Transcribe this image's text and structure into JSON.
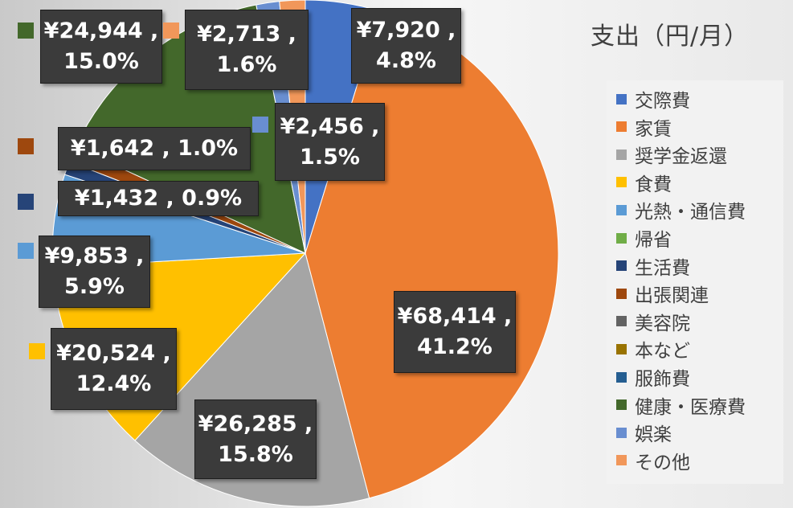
{
  "chart_data": {
    "type": "pie",
    "title": "支出（円/月）",
    "legend_position": "right",
    "series": [
      {
        "name": "交際費",
        "value": 7920,
        "value_label": "¥7,920 ,",
        "percent_label": "4.8%",
        "color": "#4472c4"
      },
      {
        "name": "家賃",
        "value": 68414,
        "value_label": "¥68,414 ,",
        "percent_label": "41.2%",
        "color": "#ed7d31"
      },
      {
        "name": "奨学金返還",
        "value": 26285,
        "value_label": "¥26,285 ,",
        "percent_label": "15.8%",
        "color": "#a5a5a5"
      },
      {
        "name": "食費",
        "value": 20524,
        "value_label": "¥20,524 ,",
        "percent_label": "12.4%",
        "color": "#ffc000"
      },
      {
        "name": "光熱・通信費",
        "value": 9853,
        "value_label": "¥9,853 ,",
        "percent_label": "5.9%",
        "color": "#5b9bd5"
      },
      {
        "name": "帰省",
        "value": 0,
        "value_label": "",
        "percent_label": "",
        "color": "#70ad47"
      },
      {
        "name": "生活費",
        "value": 1432,
        "value_label": "¥1,432 , 0.9%",
        "percent_label": "",
        "color": "#264478"
      },
      {
        "name": "出張関連",
        "value": 1642,
        "value_label": "¥1,642 , 1.0%",
        "percent_label": "",
        "color": "#9e480e"
      },
      {
        "name": "美容院",
        "value": 0,
        "value_label": "",
        "percent_label": "",
        "color": "#636363"
      },
      {
        "name": "本など",
        "value": 0,
        "value_label": "",
        "percent_label": "",
        "color": "#997300"
      },
      {
        "name": "服飾費",
        "value": 0,
        "value_label": "",
        "percent_label": "",
        "color": "#255e91"
      },
      {
        "name": "健康・医療費",
        "value": 24944,
        "value_label": "¥24,944 ,",
        "percent_label": "15.0%",
        "color": "#43682b"
      },
      {
        "name": "娯楽",
        "value": 2456,
        "value_label": "¥2,456 ,",
        "percent_label": "1.5%",
        "color": "#698ed0"
      },
      {
        "name": "その他",
        "value": 2713,
        "value_label": "¥2,713 ,",
        "percent_label": "1.6%",
        "color": "#f1975a"
      }
    ]
  }
}
